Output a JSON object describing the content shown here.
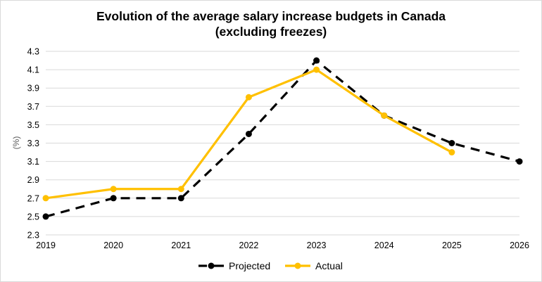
{
  "chart_data": {
    "type": "line",
    "title_line1": "Evolution of the average salary increase budgets in Canada",
    "title_line2": "(excluding freezes)",
    "xlabel": "",
    "ylabel": "(%)",
    "x": [
      "2019",
      "2020",
      "2021",
      "2022",
      "2023",
      "2024",
      "2025",
      "2026"
    ],
    "ylim": [
      2.3,
      4.3
    ],
    "yticks": [
      "2.3",
      "2.5",
      "2.7",
      "2.9",
      "3.1",
      "3.3",
      "3.5",
      "3.7",
      "3.9",
      "4.1",
      "4.3"
    ],
    "grid": true,
    "legend_position": "bottom",
    "series": [
      {
        "name": "Projected",
        "color": "#000000",
        "dashed": true,
        "values": [
          2.5,
          2.7,
          2.7,
          3.4,
          4.2,
          3.6,
          3.3,
          3.1
        ]
      },
      {
        "name": "Actual",
        "color": "#FFC000",
        "dashed": false,
        "values": [
          2.7,
          2.8,
          2.8,
          3.8,
          4.1,
          3.6,
          3.2,
          null
        ]
      }
    ]
  }
}
